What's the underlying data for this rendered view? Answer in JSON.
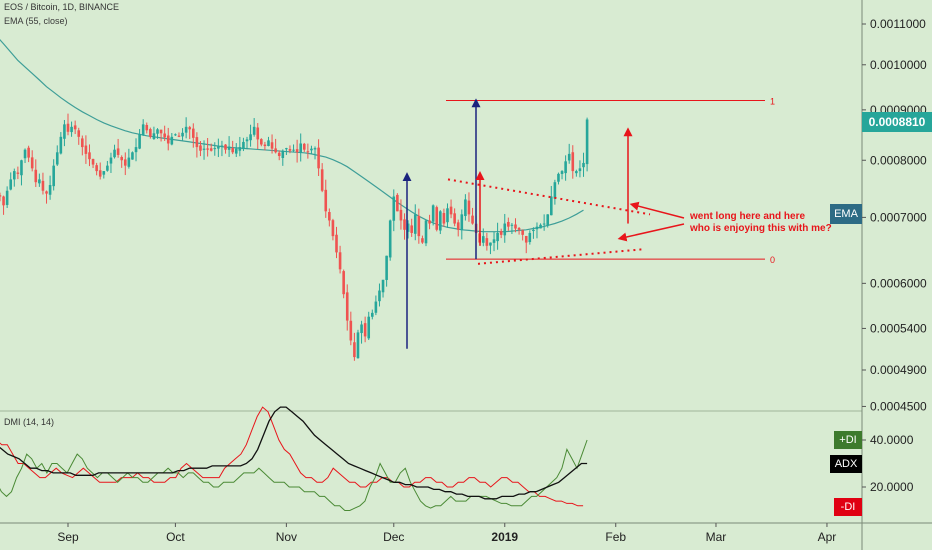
{
  "header": {
    "symbol": "EOS / Bitcoin, 1D, BINANCE",
    "ema_label": "EMA (55, close)",
    "dmi_label": "DMI (14, 14)"
  },
  "tags": {
    "last_price": "0.0008810",
    "ema": "EMA",
    "plus_di": "+DI",
    "adx": "ADX",
    "minus_di": "-DI"
  },
  "annotation": {
    "line1": "went long here and here",
    "line2": "who is enjoying this with me?"
  },
  "fib": {
    "level_top": "1",
    "level_bottom": "0",
    "price_top": 0.00092,
    "price_bottom": 0.000635
  },
  "colors": {
    "background": "#d8ebd2",
    "up": "#26a69a",
    "down": "#ef5350",
    "ema": "#3e9e98",
    "arrow_red": "#e8151b",
    "arrow_blue": "#1a237e",
    "plus_di": "#4a8a35",
    "adx": "#111111",
    "minus_di": "#e8151b",
    "price_tag": "#26a69a",
    "ema_tag": "#2d6b85"
  },
  "chart_data": {
    "type": "candlestick",
    "price_axis": {
      "scale": "log",
      "ticks": [
        0.0011,
        0.001,
        0.0009,
        0.0008,
        0.0007,
        0.0006,
        0.00054,
        0.00049,
        0.00045
      ],
      "tick_labels": [
        "0.0011000",
        "0.0010000",
        "0.0009000",
        "0.0008000",
        "0.0007000",
        "0.0006000",
        "0.0005400",
        "0.0004900",
        "0.0004500"
      ]
    },
    "time_axis": {
      "labels": [
        "Sep",
        "Oct",
        "Nov",
        "Dec",
        "2019",
        "Feb",
        "Mar",
        "Apr"
      ],
      "label_day_index": [
        0,
        30,
        61,
        91,
        122,
        153,
        181,
        212
      ],
      "start_offset_days": -20
    },
    "close_series": [
      0.00074,
      0.000735,
      0.00072,
      0.000745,
      0.000765,
      0.00078,
      0.000775,
      0.0008,
      0.00082,
      0.000805,
      0.000785,
      0.00076,
      0.000765,
      0.000745,
      0.00074,
      0.000755,
      0.00079,
      0.000815,
      0.000845,
      0.00087,
      0.000855,
      0.000865,
      0.00086,
      0.000845,
      0.000825,
      0.000812,
      0.000802,
      0.000792,
      0.00078,
      0.00077,
      0.00078,
      0.00079,
      0.000805,
      0.00082,
      0.00081,
      0.0008,
      0.00079,
      0.000805,
      0.000815,
      0.000825,
      0.00085,
      0.00087,
      0.000858,
      0.000845,
      0.000852,
      0.00086,
      0.000852,
      0.000844,
      0.000832,
      0.000845,
      0.00085,
      0.000845,
      0.000853,
      0.000865,
      0.00086,
      0.000843,
      0.000825,
      0.000818,
      0.000822,
      0.00082,
      0.000818,
      0.000823,
      0.000826,
      0.000828,
      0.00082,
      0.000826,
      0.000815,
      0.000822,
      0.000825,
      0.000835,
      0.00084,
      0.00085,
      0.000865,
      0.00084,
      0.00083,
      0.000827,
      0.000838,
      0.000822,
      0.000815,
      0.000808,
      0.000818,
      0.000823,
      0.000818,
      0.00082,
      0.000815,
      0.000832,
      0.00082,
      0.000815,
      0.000822,
      0.000823,
      0.000785,
      0.000745,
      0.00071,
      0.000695,
      0.00067,
      0.000645,
      0.00062,
      0.000585,
      0.00055,
      0.000525,
      0.000505,
      0.000535,
      0.000545,
      0.00053,
      0.000555,
      0.00056,
      0.000575,
      0.00059,
      0.000605,
      0.00064,
      0.000695,
      0.000735,
      0.00071,
      0.000695,
      0.00068,
      0.00069,
      0.000675,
      0.000705,
      0.00067,
      0.00066,
      0.000695,
      0.00069,
      0.00072,
      0.00068,
      0.00071,
      0.00069,
      0.000715,
      0.000705,
      0.00069,
      0.00068,
      0.000705,
      0.00073,
      0.000705,
      0.00069,
      0.000675,
      0.00066,
      0.00067,
      0.000655,
      0.00066,
      0.000665,
      0.000675,
      0.000672,
      0.00069,
      0.000685,
      0.000688,
      0.000682,
      0.00068,
      0.000672,
      0.00066,
      0.000675,
      0.00068,
      0.000685,
      0.000688,
      0.00069,
      0.000705,
      0.000735,
      0.00076,
      0.000775,
      0.00078,
      0.000798,
      0.000812,
      0.00078,
      0.00078,
      0.000785,
      0.000795,
      0.00088
    ],
    "ema_55": [
      0.00107,
      0.00105,
      0.00103,
      0.00101,
      0.000995,
      0.00098,
      0.000965,
      0.00095,
      0.000938,
      0.000926,
      0.000915,
      0.000905,
      0.000896,
      0.000888,
      0.00088,
      0.000873,
      0.000867,
      0.000862,
      0.000857,
      0.000853,
      0.00085,
      0.000847,
      0.000845,
      0.000843,
      0.000841,
      0.000839,
      0.000837,
      0.000835,
      0.000833,
      0.000831,
      0.000829,
      0.000827,
      0.000825,
      0.000824,
      0.000823,
      0.000822,
      0.000821,
      0.00082,
      0.000819,
      0.000818,
      0.000817,
      0.000816,
      0.000815,
      0.000814,
      0.000812,
      0.000809,
      0.000806,
      0.000801,
      0.000795,
      0.000788,
      0.000779,
      0.00077,
      0.000761,
      0.000752,
      0.000743,
      0.000734,
      0.000725,
      0.000717,
      0.000709,
      0.000702,
      0.000696,
      0.000691,
      0.000687,
      0.000684,
      0.000682,
      0.00068,
      0.000679,
      0.000678,
      0.000677,
      0.000677,
      0.000677,
      0.000677,
      0.000678,
      0.000679,
      0.00068,
      0.000682,
      0.000684,
      0.000687,
      0.00069,
      0.000694,
      0.000699,
      0.000705,
      0.000712
    ],
    "dmi": {
      "axis_ticks": [
        40,
        20
      ],
      "axis_labels": [
        "40.0000",
        "20.0000"
      ],
      "plus_di": [
        22,
        18,
        16,
        18,
        24,
        28,
        34,
        32,
        28,
        30,
        26,
        30,
        30,
        28,
        26,
        30,
        34,
        32,
        28,
        26,
        24,
        26,
        26,
        24,
        22,
        24,
        26,
        24,
        24,
        22,
        22,
        24,
        26,
        26,
        28,
        26,
        26,
        24,
        26,
        26,
        24,
        22,
        22,
        20,
        20,
        22,
        22,
        22,
        24,
        26,
        26,
        26,
        28,
        26,
        24,
        22,
        22,
        22,
        20,
        20,
        20,
        18,
        18,
        18,
        16,
        16,
        14,
        12,
        12,
        10,
        10,
        11,
        12,
        14,
        20,
        24,
        30,
        26,
        22,
        22,
        26,
        28,
        22,
        18,
        14,
        12,
        11,
        12,
        12,
        14,
        16,
        14,
        14,
        14,
        16,
        16,
        16,
        16,
        15,
        14,
        13,
        13,
        12,
        12,
        12,
        14,
        16,
        16,
        18,
        20,
        22,
        24,
        28,
        36,
        32,
        28,
        34,
        40
      ],
      "adx": [
        38,
        36,
        34,
        33,
        32,
        30,
        28,
        28,
        27,
        27,
        26,
        26,
        26,
        26,
        25,
        25,
        25,
        25,
        26,
        26,
        26,
        26,
        26,
        26,
        26,
        26,
        26,
        26,
        26,
        26,
        26,
        26,
        27,
        27,
        28,
        28,
        28,
        28,
        29,
        29,
        29,
        29,
        29,
        29,
        30,
        32,
        36,
        42,
        48,
        52,
        54,
        54,
        52,
        50,
        48,
        45,
        42,
        40,
        38,
        36,
        34,
        32,
        30,
        29,
        28,
        27,
        26,
        25,
        24,
        23,
        22,
        22,
        21,
        21,
        20,
        20,
        20,
        19,
        19,
        18,
        18,
        17,
        17,
        16,
        16,
        16,
        15,
        15,
        15,
        16,
        16,
        16,
        17,
        17,
        18,
        18,
        19,
        20,
        21,
        22,
        24,
        26,
        28,
        30,
        30
      ],
      "minus_di": [
        40,
        38,
        38,
        34,
        30,
        30,
        28,
        26,
        24,
        24,
        26,
        28,
        26,
        25,
        24,
        26,
        28,
        26,
        24,
        22,
        22,
        22,
        22,
        24,
        24,
        24,
        26,
        24,
        24,
        22,
        22,
        22,
        24,
        24,
        28,
        30,
        28,
        26,
        24,
        24,
        24,
        24,
        28,
        30,
        32,
        34,
        38,
        44,
        50,
        54,
        52,
        46,
        40,
        36,
        34,
        30,
        26,
        24,
        24,
        22,
        22,
        24,
        28,
        26,
        24,
        22,
        22,
        20,
        20,
        22,
        22,
        24,
        24,
        22,
        22,
        20,
        20,
        22,
        22,
        24,
        24,
        22,
        22,
        20,
        20,
        22,
        22,
        24,
        24,
        22,
        22,
        20,
        22,
        24,
        24,
        22,
        22,
        20,
        18,
        18,
        16,
        16,
        15,
        14,
        14,
        13,
        13,
        12,
        12
      ]
    }
  }
}
